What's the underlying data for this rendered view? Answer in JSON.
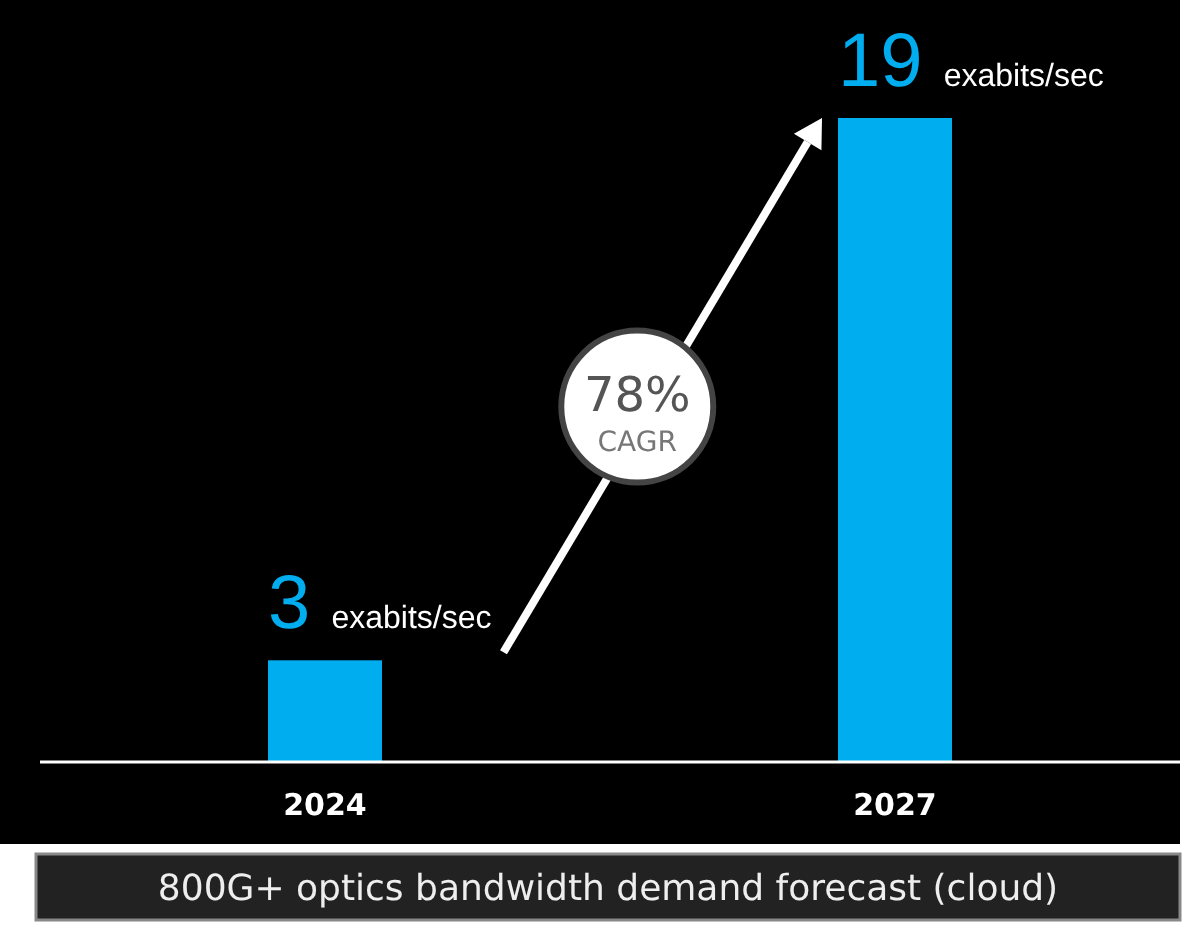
{
  "chart_data": {
    "type": "bar",
    "categories": [
      "2024",
      "2027"
    ],
    "values": [
      3,
      19
    ],
    "color": "#00adef",
    "value_labels": [
      "3 exabits/sec",
      "19 exabits/sec"
    ],
    "annotations": [
      "78% CAGR",
      "800G+ optics bandwidth demand forecast (cloud)"
    ]
  }
}
